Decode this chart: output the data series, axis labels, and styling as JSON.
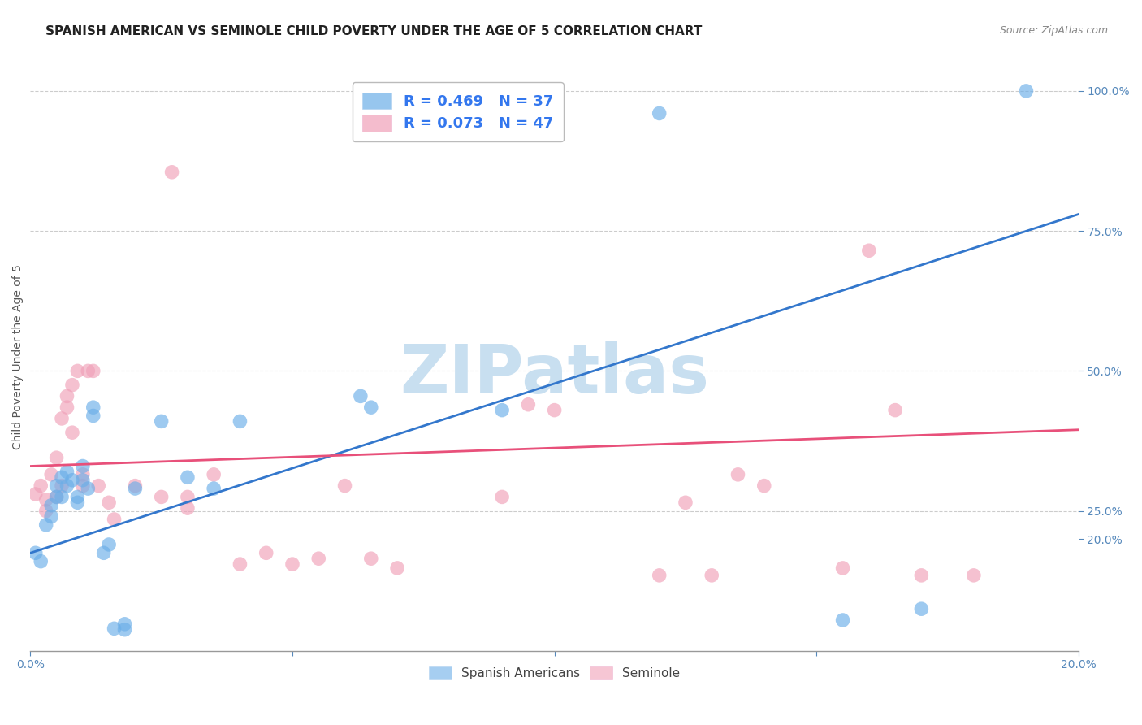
{
  "title": "SPANISH AMERICAN VS SEMINOLE CHILD POVERTY UNDER THE AGE OF 5 CORRELATION CHART",
  "source": "Source: ZipAtlas.com",
  "ylabel": "Child Poverty Under the Age of 5",
  "xlim": [
    0.0,
    0.2
  ],
  "ylim": [
    0.0,
    1.05
  ],
  "xticks": [
    0.0,
    0.05,
    0.1,
    0.15,
    0.2
  ],
  "yticks_right": [
    0.2,
    0.25,
    0.5,
    0.75,
    1.0
  ],
  "legend_entries": [
    {
      "label": "R = 0.469   N = 37",
      "color": "#6baee8"
    },
    {
      "label": "R = 0.073   N = 47",
      "color": "#f0a0b8"
    }
  ],
  "legend_bottom": [
    "Spanish Americans",
    "Seminole"
  ],
  "blue_scatter_x": [
    0.001,
    0.002,
    0.003,
    0.004,
    0.004,
    0.005,
    0.005,
    0.006,
    0.006,
    0.007,
    0.007,
    0.008,
    0.009,
    0.009,
    0.01,
    0.01,
    0.011,
    0.012,
    0.012,
    0.014,
    0.015,
    0.016,
    0.018,
    0.018,
    0.02,
    0.025,
    0.03,
    0.035,
    0.04,
    0.065,
    0.09,
    0.095,
    0.12,
    0.155,
    0.17,
    0.19,
    0.063
  ],
  "blue_scatter_y": [
    0.175,
    0.16,
    0.225,
    0.26,
    0.24,
    0.295,
    0.275,
    0.31,
    0.275,
    0.32,
    0.295,
    0.305,
    0.275,
    0.265,
    0.33,
    0.305,
    0.29,
    0.42,
    0.435,
    0.175,
    0.19,
    0.04,
    0.038,
    0.048,
    0.29,
    0.41,
    0.31,
    0.29,
    0.41,
    0.435,
    0.43,
    0.96,
    0.96,
    0.055,
    0.075,
    1.0,
    0.455
  ],
  "pink_scatter_x": [
    0.001,
    0.002,
    0.003,
    0.003,
    0.004,
    0.005,
    0.005,
    0.006,
    0.006,
    0.007,
    0.007,
    0.008,
    0.008,
    0.009,
    0.01,
    0.01,
    0.011,
    0.012,
    0.013,
    0.015,
    0.016,
    0.02,
    0.025,
    0.027,
    0.03,
    0.03,
    0.035,
    0.04,
    0.045,
    0.05,
    0.055,
    0.06,
    0.065,
    0.07,
    0.09,
    0.095,
    0.1,
    0.12,
    0.13,
    0.135,
    0.14,
    0.155,
    0.16,
    0.165,
    0.17,
    0.18,
    0.125
  ],
  "pink_scatter_y": [
    0.28,
    0.295,
    0.25,
    0.27,
    0.315,
    0.275,
    0.345,
    0.295,
    0.415,
    0.435,
    0.455,
    0.39,
    0.475,
    0.5,
    0.295,
    0.315,
    0.5,
    0.5,
    0.295,
    0.265,
    0.235,
    0.295,
    0.275,
    0.855,
    0.255,
    0.275,
    0.315,
    0.155,
    0.175,
    0.155,
    0.165,
    0.295,
    0.165,
    0.148,
    0.275,
    0.44,
    0.43,
    0.135,
    0.135,
    0.315,
    0.295,
    0.148,
    0.715,
    0.43,
    0.135,
    0.135,
    0.265
  ],
  "blue_line_x": [
    0.0,
    0.2
  ],
  "blue_line_y": [
    0.175,
    0.78
  ],
  "pink_line_x": [
    0.0,
    0.2
  ],
  "pink_line_y": [
    0.33,
    0.395
  ],
  "background_color": "#ffffff",
  "grid_color": "#cccccc",
  "title_fontsize": 11,
  "axis_label_fontsize": 10,
  "tick_fontsize": 10,
  "watermark_text": "ZIPatlas",
  "watermark_color": "#c8dff0",
  "watermark_fontsize": 60
}
